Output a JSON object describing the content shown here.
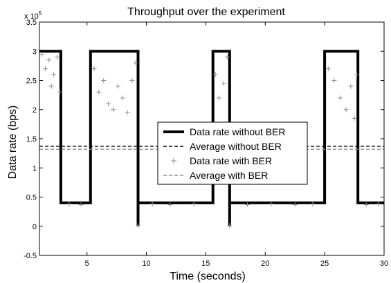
{
  "chart_data": {
    "type": "line",
    "title": "Throughput over the experiment",
    "xlabel": "Time (seconds)",
    "ylabel": "Data rate (bps)",
    "y_exponent_label": "x 10",
    "y_exponent_power": "5",
    "xlim": [
      1,
      30
    ],
    "ylim": [
      -0.5,
      3.5
    ],
    "x_ticks": [
      5,
      10,
      15,
      20,
      25,
      30
    ],
    "x_tick_labels": [
      "5",
      "10",
      "15",
      "20",
      "25",
      "30"
    ],
    "y_ticks": [
      -0.5,
      0,
      0.5,
      1,
      1.5,
      2,
      2.5,
      3,
      3.5
    ],
    "y_tick_labels": [
      "-0.5",
      "0",
      "0.5",
      "1",
      "1.5",
      "2",
      "2.5",
      "3",
      "3.5"
    ],
    "legend_position": "center",
    "colors": {
      "series_black": "#000000",
      "series_gray": "#8c8c8c"
    },
    "series": [
      {
        "name": "Data rate without BER",
        "style": "solid",
        "points": [
          [
            1,
            3.0
          ],
          [
            2.8,
            3.0
          ],
          [
            2.8,
            0.4
          ],
          [
            5.3,
            0.4
          ],
          [
            5.3,
            3.0
          ],
          [
            9.3,
            3.0
          ],
          [
            9.3,
            0.0
          ],
          [
            9.3,
            0.4
          ],
          [
            15.6,
            0.4
          ],
          [
            15.6,
            3.0
          ],
          [
            17.0,
            3.0
          ],
          [
            17.0,
            0.0
          ],
          [
            17.0,
            0.4
          ],
          [
            25.0,
            0.4
          ],
          [
            25.0,
            3.0
          ],
          [
            27.8,
            3.0
          ],
          [
            27.8,
            0.4
          ],
          [
            30,
            0.4
          ]
        ]
      },
      {
        "name": "Average without BER",
        "style": "dashed",
        "y": 1.37
      },
      {
        "name": "Data rate with BER",
        "style": "plus-markers",
        "points": [
          [
            1.2,
            2.95
          ],
          [
            1.5,
            2.7
          ],
          [
            1.8,
            2.85
          ],
          [
            2.0,
            2.4
          ],
          [
            2.2,
            2.6
          ],
          [
            2.5,
            2.9
          ],
          [
            2.7,
            2.3
          ],
          [
            5.6,
            2.7
          ],
          [
            6.0,
            2.3
          ],
          [
            6.4,
            2.5
          ],
          [
            6.8,
            2.1
          ],
          [
            7.2,
            2.0
          ],
          [
            7.6,
            2.4
          ],
          [
            8.0,
            2.2
          ],
          [
            8.4,
            1.95
          ],
          [
            8.8,
            2.5
          ],
          [
            9.1,
            2.8
          ],
          [
            15.8,
            2.6
          ],
          [
            16.1,
            2.2
          ],
          [
            16.5,
            2.45
          ],
          [
            16.8,
            2.9
          ],
          [
            25.3,
            2.7
          ],
          [
            25.8,
            2.5
          ],
          [
            26.3,
            2.2
          ],
          [
            26.8,
            2.0
          ],
          [
            27.2,
            2.4
          ],
          [
            27.5,
            1.85
          ],
          [
            27.7,
            2.6
          ],
          [
            3.5,
            0.38
          ],
          [
            4.5,
            0.37
          ],
          [
            10.5,
            0.38
          ],
          [
            12.0,
            0.37
          ],
          [
            14.0,
            0.38
          ],
          [
            18.5,
            0.37
          ],
          [
            20.5,
            0.38
          ],
          [
            22.5,
            0.37
          ],
          [
            24.0,
            0.38
          ],
          [
            28.5,
            0.37
          ],
          [
            29.5,
            0.38
          ],
          [
            9.3,
            0.01
          ],
          [
            17.0,
            0.01
          ]
        ]
      },
      {
        "name": "Average with BER",
        "style": "dashed-gray",
        "y": 1.32
      }
    ]
  }
}
